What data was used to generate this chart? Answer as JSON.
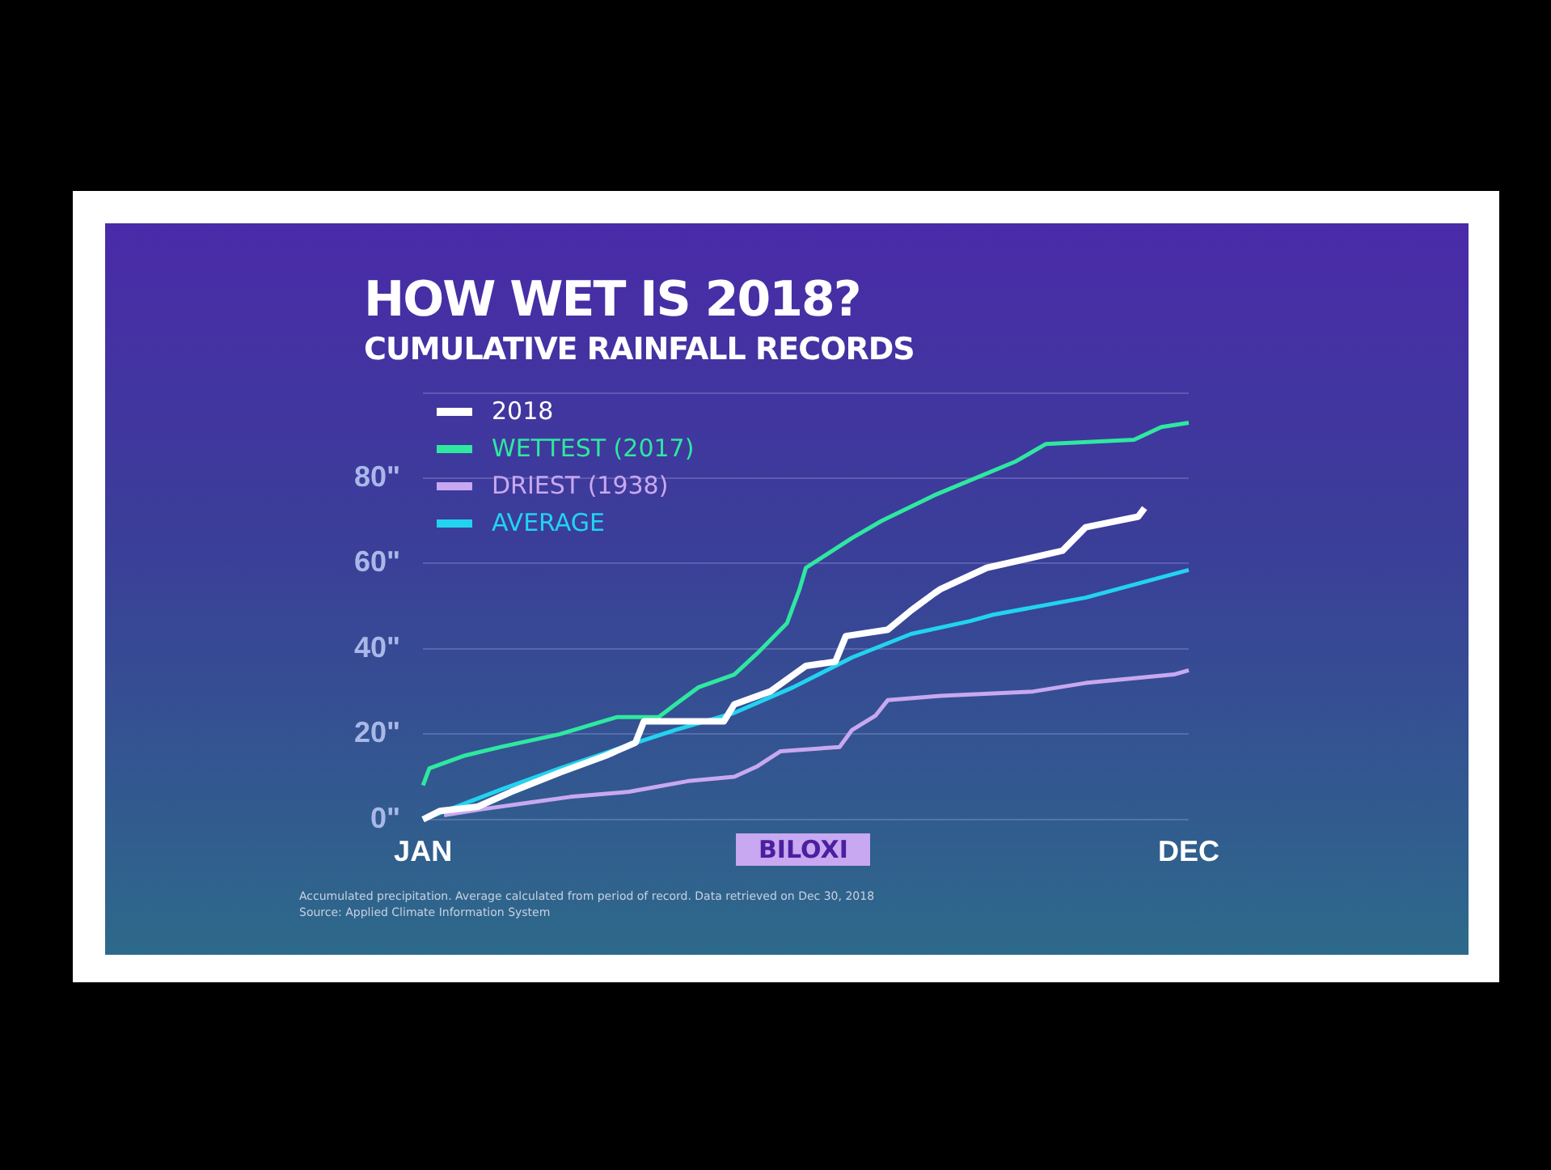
{
  "chart_data": {
    "type": "line",
    "title": "HOW WET IS 2018?",
    "subtitle": "CUMULATIVE RAINFALL RECORDS",
    "annotations": [
      "BILOXI",
      "Accumulated precipitation. Average calculated from period of record. Data retrieved on Dec 30, 2018",
      "Source: Applied Climate Information System"
    ],
    "xlim": [
      "--01-01",
      "--12-31"
    ],
    "xticks": [
      {
        "value": "--01-01",
        "label": "JAN"
      },
      {
        "value": "--12-31",
        "label": "DEC"
      }
    ],
    "ylim": [
      0,
      100
    ],
    "yticks": [
      {
        "value": 0,
        "label": "0\""
      },
      {
        "value": 20,
        "label": "20\""
      },
      {
        "value": 40,
        "label": "40\""
      },
      {
        "value": 60,
        "label": "60\""
      },
      {
        "value": 80,
        "label": "80\""
      },
      {
        "value": 100,
        "label": null
      }
    ],
    "grid": "y",
    "legend": "top left",
    "marker": "none",
    "line_style": "solid",
    "series": [
      {
        "name": "2018",
        "color": "#ffffff",
        "x": [
          "--01-01",
          "--01-09",
          "--01-27",
          "--02-12",
          "--03-07",
          "--03-29",
          "--04-12",
          "--04-16",
          "--05-24",
          "--05-29",
          "--06-15",
          "--07-02",
          "--07-16",
          "--07-21",
          "--08-10",
          "--08-21",
          "--09-01",
          "--09-04",
          "--09-26",
          "--11-01",
          "--11-12",
          "--12-07",
          "--12-10"
        ],
        "values": [
          0,
          2,
          3,
          6.5,
          11,
          15,
          18,
          23,
          23,
          27,
          30,
          36,
          37,
          43,
          44.5,
          49,
          53,
          54,
          59,
          63,
          68.5,
          71,
          73
        ]
      },
      {
        "name": "WETTEST (2017)",
        "color": "#2ee8a0",
        "x": [
          "--01-01",
          "--01-04",
          "--01-21",
          "--02-07",
          "--03-07",
          "--04-03",
          "--04-23",
          "--05-01",
          "--05-12",
          "--05-29",
          "--06-09",
          "--06-23",
          "--06-29",
          "--07-02",
          "--07-24",
          "--08-07",
          "--09-01",
          "--10-10",
          "--10-24",
          "--12-05",
          "--12-18",
          "--12-31"
        ],
        "values": [
          8,
          12,
          15,
          17,
          20,
          24,
          24,
          27,
          31,
          34,
          39,
          46,
          54,
          59,
          66,
          70,
          76,
          84,
          88,
          89,
          92,
          93
        ]
      },
      {
        "name": "DRIEST (1938)",
        "color": "#c8a8f0",
        "x": [
          "--01-11",
          "--01-29",
          "--02-21",
          "--03-12",
          "--04-09",
          "--05-07",
          "--05-29",
          "--06-09",
          "--06-20",
          "--07-18",
          "--07-24",
          "--08-04",
          "--08-10",
          "--09-04",
          "--10-18",
          "--11-12",
          "--12-24",
          "--12-31"
        ],
        "values": [
          1,
          2.4,
          4,
          5.3,
          6.5,
          9,
          10,
          12.5,
          16,
          17,
          21,
          24.3,
          28,
          29,
          30,
          32,
          34,
          35
        ]
      },
      {
        "name": "AVERAGE",
        "color": "#22d3f0",
        "x": [
          "--01-01",
          "--02-07",
          "--03-07",
          "--04-03",
          "--05-01",
          "--05-29",
          "--06-26",
          "--07-24",
          "--08-21",
          "--09-18",
          "--09-29",
          "--11-12",
          "--12-31"
        ],
        "values": [
          0,
          7,
          12,
          16.5,
          21,
          25,
          31,
          38,
          43.5,
          46.5,
          48,
          52,
          58.5
        ]
      }
    ]
  }
}
